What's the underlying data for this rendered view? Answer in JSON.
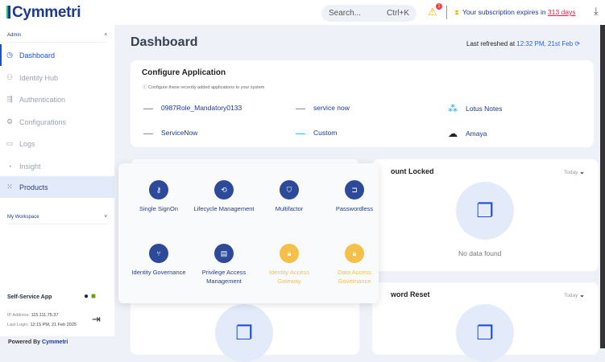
{
  "header": {
    "logo": "Cymmetri",
    "search_placeholder": "Search...",
    "search_shortcut": "Ctrl+K",
    "alert_count": "1",
    "subscription_text": "Your subscription expires in",
    "subscription_days": "313 days"
  },
  "sidebar": {
    "admin_label": "Admin",
    "items": [
      {
        "label": "Dashboard",
        "icon": "dashboard-icon"
      },
      {
        "label": "Identity Hub",
        "icon": "users-icon"
      },
      {
        "label": "Authentication",
        "icon": "auth-icon"
      },
      {
        "label": "Configurations",
        "icon": "gear-icon"
      },
      {
        "label": "Logs",
        "icon": "logs-icon"
      },
      {
        "label": "Insight",
        "icon": "pie-icon"
      },
      {
        "label": "Products",
        "icon": "grid-icon"
      }
    ],
    "workspace_label": "My Workspace",
    "self_service": "Self-Service App",
    "ip_label": "IP Address:",
    "ip": "115.111.75.37",
    "login_label": "Last Login:",
    "login": "12:15 PM, 21 Feb 2025",
    "powered_by": "Powered By",
    "powered_logo": "Cymmetri"
  },
  "main": {
    "title": "Dashboard",
    "refreshed_label": "Last refreshed at",
    "refreshed_time": "12:32 PM, 21st Feb",
    "configure": {
      "title": "Configure Application",
      "subtitle": "Configure these recently added applications to your system",
      "apps": [
        "0987Role_Mandatory0133",
        "service now",
        "Lotus Notes",
        "ServiceNow",
        "Custom",
        "Amaya"
      ]
    },
    "cards": [
      {
        "title": "ount Locked",
        "filter": "Today",
        "empty": "No data found"
      },
      {
        "title": "word Reset",
        "filter": "Today"
      }
    ]
  },
  "products": [
    {
      "label": "Single SignOn",
      "color": "#2d4a9a"
    },
    {
      "label": "Lifecycle Management",
      "color": "#2d4a9a"
    },
    {
      "label": "Multifactor",
      "color": "#2d4a9a"
    },
    {
      "label": "Passwordless",
      "color": "#2d4a9a"
    },
    {
      "label": "Identity Governance",
      "color": "#2d4a9a"
    },
    {
      "label": "Privilege Access Management",
      "color": "#2d4a9a"
    },
    {
      "label": "Identity Access Gateway",
      "color": "#f5c04a"
    },
    {
      "label": "Data Access Governance",
      "color": "#f5c04a"
    }
  ]
}
